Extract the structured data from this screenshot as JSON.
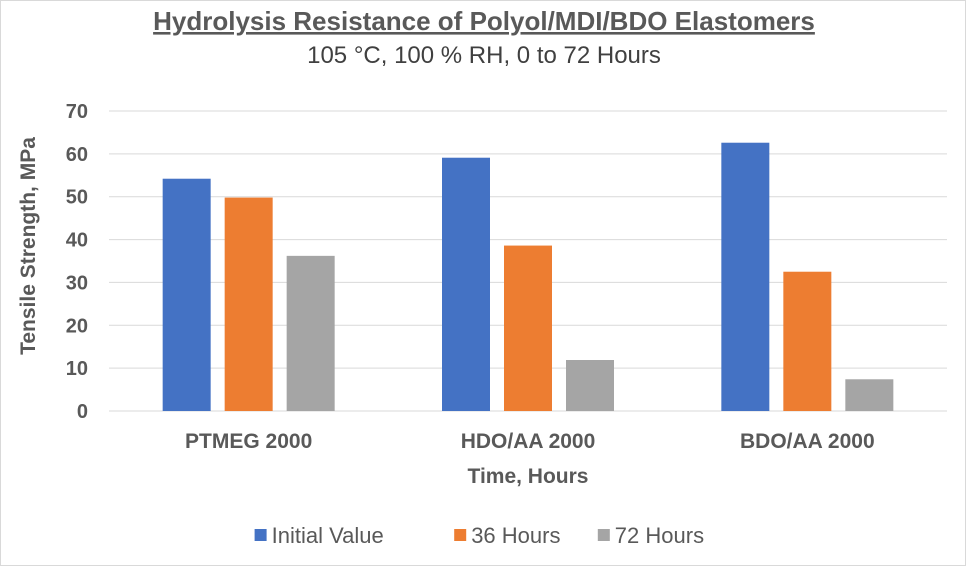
{
  "chart_data": {
    "type": "bar",
    "title": "Hydrolysis Resistance  of Polyol/MDI/BDO Elastomers",
    "subtitle": "105 °C, 100 % RH, 0 to 72 Hours",
    "xlabel": "Time, Hours",
    "ylabel": "Tensile Strength, MPa",
    "ylim": [
      0,
      70
    ],
    "yticks": [
      "0",
      "10",
      "20",
      "30",
      "40",
      "50",
      "60",
      "70"
    ],
    "categories": [
      "PTMEG 2000",
      "HDO/AA 2000",
      "BDO/AA 2000"
    ],
    "series": [
      {
        "name": "Initial Value",
        "color": "#4472C4",
        "values": [
          54.2,
          59.1,
          62.6
        ]
      },
      {
        "name": "36 Hours",
        "color": "#ED7D31",
        "values": [
          49.8,
          38.6,
          32.5
        ]
      },
      {
        "name": "72 Hours",
        "color": "#A5A5A5",
        "values": [
          36.2,
          11.9,
          7.4
        ]
      }
    ],
    "grid": true,
    "legend_position": "bottom"
  }
}
